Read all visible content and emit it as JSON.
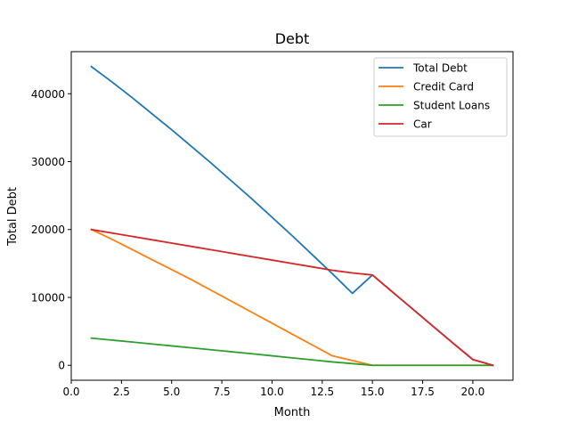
{
  "chart_data": {
    "type": "line",
    "title": "Debt",
    "xlabel": "Month",
    "ylabel": "Total Debt",
    "xlim": [
      0.0,
      22.0
    ],
    "ylim": [
      -2200,
      46200
    ],
    "xticks": [
      0.0,
      2.5,
      5.0,
      7.5,
      10.0,
      12.5,
      15.0,
      17.5,
      20.0
    ],
    "xtick_labels": [
      "0.0",
      "2.5",
      "5.0",
      "7.5",
      "10.0",
      "12.5",
      "15.0",
      "17.5",
      "20.0"
    ],
    "yticks": [
      0,
      10000,
      20000,
      30000,
      40000
    ],
    "ytick_labels": [
      "0",
      "10000",
      "20000",
      "30000",
      "40000"
    ],
    "grid": false,
    "legend_position": "top-right",
    "x": [
      1,
      2,
      3,
      4,
      5,
      6,
      7,
      8,
      9,
      10,
      11,
      12,
      13,
      14,
      15,
      16,
      17,
      18,
      19,
      20,
      21
    ],
    "series": [
      {
        "name": "Total Debt",
        "color": "#1f77b4",
        "values": [
          44000,
          41800,
          39500,
          37100,
          34700,
          32200,
          29700,
          27100,
          24500,
          21800,
          19100,
          16300,
          13500,
          10600,
          13300,
          10800,
          8300,
          5800,
          3300,
          850,
          0
        ]
      },
      {
        "name": "Credit Card",
        "color": "#ff7f0e",
        "values": [
          20000,
          18600,
          17100,
          15600,
          14100,
          12600,
          11000,
          9400,
          7800,
          6200,
          4600,
          3000,
          1400,
          700,
          0,
          0,
          0,
          0,
          0,
          0,
          0
        ]
      },
      {
        "name": "Student Loans",
        "color": "#2ca02c",
        "values": [
          4000,
          3720,
          3440,
          3150,
          2860,
          2570,
          2280,
          1990,
          1700,
          1400,
          1100,
          800,
          500,
          250,
          0,
          0,
          0,
          0,
          0,
          0,
          0
        ]
      },
      {
        "name": "Car",
        "color": "#d62728",
        "values": [
          20000,
          19500,
          19000,
          18500,
          18000,
          17500,
          17000,
          16500,
          16000,
          15500,
          15000,
          14500,
          14000,
          13600,
          13300,
          10800,
          8300,
          5800,
          3300,
          850,
          0
        ]
      }
    ]
  }
}
